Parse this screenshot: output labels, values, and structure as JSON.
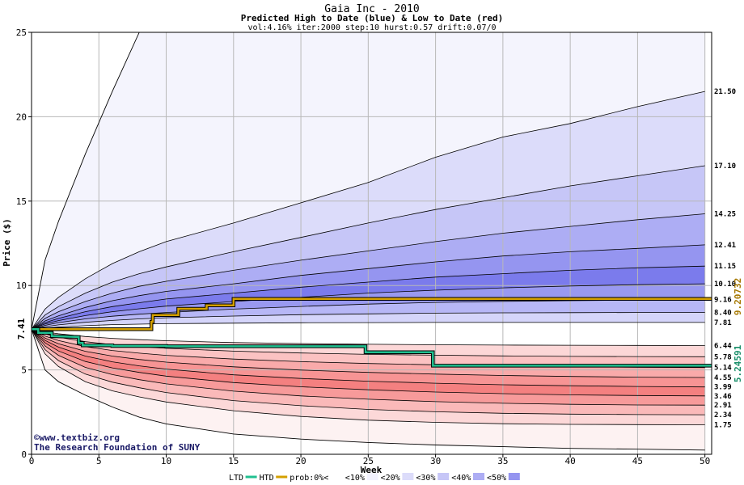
{
  "chart_data": {
    "type": "area",
    "title": "Gaia Inc - 2010",
    "subtitle": "Predicted High to Date (blue) &  Low to Date (red)",
    "params": "vol:4.16% iter:2000 step:10 hurst:0.57 drift:0.07/0",
    "xlabel": "Week",
    "ylabel": "Price ($)",
    "xlim": [
      0,
      50.5
    ],
    "ylim": [
      0,
      25
    ],
    "x_ticks": [
      0,
      5,
      10,
      15,
      20,
      25,
      30,
      35,
      40,
      45,
      50
    ],
    "y_ticks": [
      0,
      5,
      10,
      15,
      20,
      25
    ],
    "grid": true,
    "start_price": 7.41,
    "start_label": "7.41",
    "x": [
      0,
      1,
      2,
      4,
      6,
      8,
      10,
      15,
      20,
      25,
      30,
      35,
      40,
      45,
      50
    ],
    "envelope_upper": [
      7.41,
      11.5,
      13.8,
      17.8,
      21.5,
      25,
      25,
      25,
      25,
      25,
      25,
      25,
      25,
      25,
      25
    ],
    "envelope_lower": [
      7.41,
      5.0,
      4.3,
      3.5,
      2.8,
      2.2,
      1.8,
      1.2,
      0.9,
      0.7,
      0.55,
      0.45,
      0.35,
      0.3,
      0.25
    ],
    "high_quantiles": [
      {
        "label": "21.50",
        "values": [
          7.41,
          8.6,
          9.3,
          10.4,
          11.3,
          12.0,
          12.6,
          13.7,
          14.9,
          16.1,
          17.6,
          18.8,
          19.6,
          20.6,
          21.5
        ]
      },
      {
        "label": "17.10",
        "values": [
          7.41,
          8.25,
          8.75,
          9.55,
          10.2,
          10.7,
          11.1,
          12.0,
          12.85,
          13.7,
          14.5,
          15.2,
          15.9,
          16.5,
          17.1
        ]
      },
      {
        "label": "14.25",
        "values": [
          7.41,
          8.05,
          8.45,
          9.05,
          9.55,
          9.95,
          10.25,
          10.9,
          11.5,
          12.05,
          12.6,
          13.1,
          13.5,
          13.9,
          14.25
        ]
      },
      {
        "label": "12.41",
        "values": [
          7.41,
          7.9,
          8.2,
          8.7,
          9.1,
          9.4,
          9.65,
          10.1,
          10.6,
          11.0,
          11.4,
          11.75,
          12.0,
          12.2,
          12.41
        ]
      },
      {
        "label": "11.15",
        "values": [
          7.41,
          7.8,
          8.05,
          8.45,
          8.75,
          8.98,
          9.2,
          9.55,
          9.9,
          10.2,
          10.5,
          10.7,
          10.9,
          11.05,
          11.15
        ]
      },
      {
        "label": "10.10",
        "values": [
          7.41,
          7.72,
          7.92,
          8.22,
          8.45,
          8.62,
          8.78,
          9.05,
          9.3,
          9.55,
          9.72,
          9.86,
          9.97,
          10.05,
          10.1
        ]
      },
      {
        "label": "9.16",
        "values": [
          7.41,
          7.64,
          7.8,
          8.02,
          8.18,
          8.3,
          8.4,
          8.6,
          8.76,
          8.9,
          9.0,
          9.06,
          9.1,
          9.14,
          9.16
        ]
      },
      {
        "label": "8.40",
        "values": [
          7.41,
          7.56,
          7.67,
          7.82,
          7.93,
          8.02,
          8.09,
          8.19,
          8.27,
          8.32,
          8.36,
          8.38,
          8.39,
          8.4,
          8.4
        ]
      },
      {
        "label": "7.81",
        "values": [
          7.41,
          7.48,
          7.54,
          7.62,
          7.68,
          7.71,
          7.74,
          7.77,
          7.79,
          7.8,
          7.81,
          7.81,
          7.81,
          7.81,
          7.81
        ]
      }
    ],
    "low_quantiles": [
      {
        "label": "6.44",
        "values": [
          7.41,
          7.25,
          7.14,
          6.98,
          6.87,
          6.79,
          6.73,
          6.62,
          6.56,
          6.52,
          6.49,
          6.47,
          6.46,
          6.45,
          6.44
        ]
      },
      {
        "label": "5.78",
        "values": [
          7.41,
          7.12,
          6.94,
          6.67,
          6.5,
          6.38,
          6.28,
          6.11,
          6.0,
          5.92,
          5.87,
          5.83,
          5.8,
          5.79,
          5.78
        ]
      },
      {
        "label": "5.14",
        "values": [
          7.41,
          7.0,
          6.74,
          6.38,
          6.15,
          5.99,
          5.86,
          5.64,
          5.49,
          5.38,
          5.3,
          5.24,
          5.19,
          5.16,
          5.14
        ]
      },
      {
        "label": "4.55",
        "values": [
          7.41,
          6.88,
          6.55,
          6.1,
          5.82,
          5.62,
          5.46,
          5.18,
          4.99,
          4.85,
          4.75,
          4.67,
          4.61,
          4.57,
          4.55
        ]
      },
      {
        "label": "3.99",
        "values": [
          7.41,
          6.75,
          6.35,
          5.82,
          5.48,
          5.24,
          5.05,
          4.71,
          4.49,
          4.33,
          4.21,
          4.12,
          4.06,
          4.02,
          3.99
        ]
      },
      {
        "label": "3.46",
        "values": [
          7.41,
          6.6,
          6.12,
          5.5,
          5.12,
          4.85,
          4.63,
          4.25,
          4.0,
          3.82,
          3.69,
          3.59,
          3.52,
          3.48,
          3.46
        ]
      },
      {
        "label": "2.91",
        "values": [
          7.41,
          6.42,
          5.86,
          5.15,
          4.72,
          4.42,
          4.17,
          3.74,
          3.46,
          3.26,
          3.12,
          3.02,
          2.96,
          2.92,
          2.91
        ]
      },
      {
        "label": "2.34",
        "values": [
          7.41,
          6.2,
          5.55,
          4.75,
          4.27,
          3.94,
          3.66,
          3.18,
          2.88,
          2.66,
          2.52,
          2.43,
          2.38,
          2.35,
          2.34
        ]
      },
      {
        "label": "1.75",
        "values": [
          7.41,
          5.95,
          5.2,
          4.3,
          3.76,
          3.4,
          3.1,
          2.58,
          2.24,
          2.02,
          1.89,
          1.81,
          1.77,
          1.76,
          1.75
        ]
      }
    ],
    "htd_series": {
      "name": "HTD",
      "end_label": "9.20732",
      "color": "#d4a000",
      "x": [
        0,
        8.9,
        8.9,
        9.0,
        9.0,
        10.9,
        10.9,
        13.0,
        13.0,
        15.0,
        15.0,
        50.5
      ],
      "y": [
        7.41,
        7.41,
        7.85,
        7.85,
        8.25,
        8.25,
        8.62,
        8.62,
        8.82,
        8.82,
        9.21,
        9.21
      ]
    },
    "ltd_series": {
      "name": "LTD",
      "end_label": "5.24591",
      "color": "#20c090",
      "x": [
        0,
        0.5,
        0.5,
        1.5,
        1.5,
        3.5,
        3.5,
        3.8,
        3.8,
        6.0,
        6.0,
        10.0,
        10.0,
        24.8,
        24.8,
        29.8,
        29.8,
        50.5
      ],
      "y": [
        7.41,
        7.41,
        7.2,
        7.2,
        7.0,
        6.95,
        6.6,
        6.6,
        6.45,
        6.45,
        6.42,
        6.42,
        6.4,
        6.4,
        6.05,
        6.05,
        5.25,
        5.25
      ]
    },
    "band_colors": {
      "high": [
        "#f2f2fd",
        "#dcdcfa",
        "#c6c6f7",
        "#adadf4",
        "#9595f0",
        "#7b7bec",
        "#9999f0",
        "#b7b7f6",
        "#d5d5fa"
      ],
      "low": [
        "#fdeaea",
        "#fcd7d7",
        "#fbc2c2",
        "#f9aaaa",
        "#f79494",
        "#f48080",
        "#f79a9a",
        "#fab9b9",
        "#fcd8d8"
      ],
      "outer_high": "#f4f4fd",
      "outer_low": "#fdf2f2",
      "neutral": "#ffffff"
    },
    "legend": {
      "items": [
        "LTD",
        "HTD",
        "prob:0%<",
        "<10%",
        "<20%",
        "<30%",
        "<40%",
        "<50%"
      ],
      "swatches": [
        "#ffffff",
        "#f2f2fd",
        "#dcdcfa",
        "#c6c6f7",
        "#adadf4",
        "#9595f0"
      ]
    },
    "credit": {
      "site": "©www.textbiz.org",
      "org": "The Research Foundation of SUNY"
    }
  }
}
